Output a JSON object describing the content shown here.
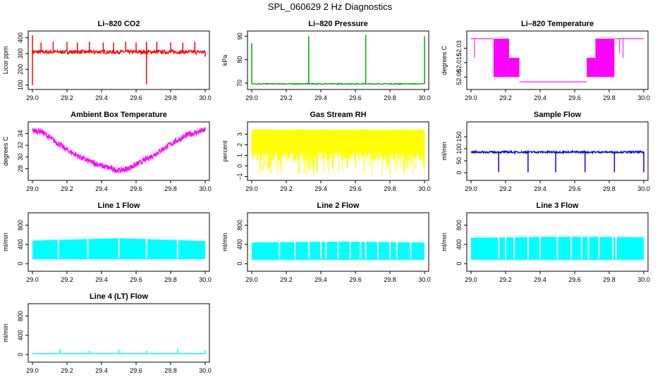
{
  "figure_title": "SPL_060629  2 Hz Diagnostics",
  "chart_data": [
    {
      "type": "line",
      "title": "Li–820 CO2",
      "ylabel": "Licor ppm",
      "color": "#ff0000",
      "xlim": [
        29.0,
        30.0
      ],
      "ylim": [
        90,
        425
      ],
      "yticks": [
        100,
        200,
        300,
        400
      ],
      "ytick_labels": [
        "100",
        "200",
        "300",
        "400"
      ],
      "xticks": [
        29.0,
        29.2,
        29.4,
        29.6,
        29.8,
        30.0
      ],
      "xtick_labels": [
        "29.0",
        "29.2",
        "29.4",
        "29.6",
        "29.8",
        "30.0"
      ],
      "pattern": "co2",
      "baseline": 310,
      "noise": 12,
      "spikes": [
        {
          "x": 29.0,
          "y": 415
        },
        {
          "x": 29.05,
          "y": 370
        },
        {
          "x": 29.12,
          "y": 375
        },
        {
          "x": 29.2,
          "y": 375
        },
        {
          "x": 29.26,
          "y": 370
        },
        {
          "x": 29.33,
          "y": 375
        },
        {
          "x": 29.41,
          "y": 370
        },
        {
          "x": 29.47,
          "y": 370
        },
        {
          "x": 29.54,
          "y": 375
        },
        {
          "x": 29.6,
          "y": 370
        },
        {
          "x": 29.66,
          "y": 375
        },
        {
          "x": 29.72,
          "y": 375
        },
        {
          "x": 29.8,
          "y": 370
        },
        {
          "x": 29.87,
          "y": 370
        },
        {
          "x": 29.94,
          "y": 375
        }
      ],
      "dips": [
        {
          "x": 29.0,
          "y": 100
        },
        {
          "x": 29.66,
          "y": 105
        },
        {
          "x": 30.0,
          "y": 280
        }
      ]
    },
    {
      "type": "line",
      "title": "Li–820 Pressure",
      "ylabel": "kPa",
      "color": "#00aa00",
      "xlim": [
        29.0,
        30.0
      ],
      "ylim": [
        68.5,
        91
      ],
      "yticks": [
        70,
        80,
        90
      ],
      "ytick_labels": [
        "70",
        "80",
        "90"
      ],
      "xticks": [
        29.0,
        29.2,
        29.4,
        29.6,
        29.8,
        30.0
      ],
      "xtick_labels": [
        "29.0",
        "29.2",
        "29.4",
        "29.6",
        "29.8",
        "30.0"
      ],
      "pattern": "pressure",
      "baseline": 69.7,
      "noise": 0.2,
      "spikes": [
        {
          "x": 29.0,
          "y": 87
        },
        {
          "x": 29.33,
          "y": 90
        },
        {
          "x": 29.66,
          "y": 90.5
        },
        {
          "x": 30.0,
          "y": 90
        }
      ]
    },
    {
      "type": "line",
      "title": "Li–820 Temperature",
      "ylabel": "degrees C",
      "color": "#ff00ff",
      "xlim": [
        29.0,
        30.0
      ],
      "ylim": [
        51.99,
        52.045
      ],
      "yticks": [
        52.0,
        52.015,
        52.03
      ],
      "ytick_labels": [
        "52.00",
        "52.015",
        "52.03"
      ],
      "xticks": [
        29.0,
        29.2,
        29.4,
        29.6,
        29.8,
        30.0
      ],
      "xtick_labels": [
        "29.0",
        "29.2",
        "29.4",
        "29.6",
        "29.8",
        "30.0"
      ],
      "pattern": "temperature",
      "levels": {
        "high": 52.04,
        "mid": 52.02,
        "low": 51.995
      },
      "blocks": [
        {
          "x0": 29.13,
          "x1": 29.22,
          "y0": 52.0,
          "y1": 52.04
        },
        {
          "x0": 29.22,
          "x1": 29.28,
          "y0": 52.0,
          "y1": 52.02
        },
        {
          "x0": 29.67,
          "x1": 29.72,
          "y0": 52.0,
          "y1": 52.02
        },
        {
          "x0": 29.72,
          "x1": 29.83,
          "y0": 52.0,
          "y1": 52.04
        }
      ],
      "spikes": [
        {
          "x": 29.02,
          "y": 52.02
        },
        {
          "x": 29.86,
          "y": 52.025
        },
        {
          "x": 29.88,
          "y": 52.02
        }
      ]
    },
    {
      "type": "line",
      "title": "Ambient Box Temperature",
      "ylabel": "degrees C",
      "color": "#ff00ff",
      "xlim": [
        29.0,
        30.0
      ],
      "ylim": [
        26.5,
        35.5
      ],
      "yticks": [
        28,
        30,
        32,
        34
      ],
      "ytick_labels": [
        "28",
        "30",
        "32",
        "34"
      ],
      "xticks": [
        29.0,
        29.2,
        29.4,
        29.6,
        29.8,
        30.0
      ],
      "xtick_labels": [
        "29.0",
        "29.2",
        "29.4",
        "29.6",
        "29.8",
        "30.0"
      ],
      "pattern": "ambient",
      "noise": 0.5,
      "curve": [
        [
          29.0,
          34.5
        ],
        [
          29.05,
          34.4
        ],
        [
          29.1,
          33.3
        ],
        [
          29.2,
          31.2
        ],
        [
          29.3,
          29.6
        ],
        [
          29.4,
          28.5
        ],
        [
          29.5,
          27.7
        ],
        [
          29.55,
          28.0
        ],
        [
          29.6,
          28.7
        ],
        [
          29.7,
          30.3
        ],
        [
          29.8,
          32.2
        ],
        [
          29.9,
          33.8
        ],
        [
          30.0,
          34.6
        ]
      ]
    },
    {
      "type": "line",
      "title": "Gas Stream RH",
      "ylabel": "percent",
      "color": "#ffff00",
      "xlim": [
        29.0,
        30.0
      ],
      "ylim": [
        -1.1,
        3.9
      ],
      "yticks": [
        -1,
        0,
        1,
        2,
        3
      ],
      "ytick_labels": [
        "–1",
        "0",
        "1",
        "2",
        "3"
      ],
      "xticks": [
        29.0,
        29.2,
        29.4,
        29.6,
        29.8,
        30.0
      ],
      "xtick_labels": [
        "29.0",
        "29.2",
        "29.4",
        "29.6",
        "29.8",
        "30.0"
      ],
      "pattern": "rh",
      "top": 3.4,
      "bottom_min": -0.9,
      "bottom_typ": 1.0
    },
    {
      "type": "line",
      "title": "Sample Flow",
      "ylabel": "ml/min",
      "color": "#0000ff",
      "xlim": [
        29.0,
        30.0
      ],
      "ylim": [
        -20,
        200
      ],
      "yticks": [
        0,
        50,
        100,
        150
      ],
      "ytick_labels": [
        "0",
        "50",
        "100",
        "150"
      ],
      "xticks": [
        29.0,
        29.2,
        29.4,
        29.6,
        29.8,
        30.0
      ],
      "xtick_labels": [
        "29.0",
        "29.2",
        "29.4",
        "29.6",
        "29.8",
        "30.0"
      ],
      "pattern": "sample",
      "baseline": 86,
      "noise": 4,
      "dips": [
        {
          "x": 29.16,
          "y": 2
        },
        {
          "x": 29.33,
          "y": 2
        },
        {
          "x": 29.49,
          "y": 2
        },
        {
          "x": 29.66,
          "y": 2
        },
        {
          "x": 29.83,
          "y": 2
        },
        {
          "x": 30.0,
          "y": 2
        }
      ]
    },
    {
      "type": "area",
      "title": "Line 1 Flow",
      "ylabel": "ml/min",
      "color": "#00ffff",
      "xlim": [
        29.0,
        30.0
      ],
      "ylim": [
        -100,
        1000
      ],
      "yticks": [
        0,
        400,
        800
      ],
      "ytick_labels": [
        "0",
        "400",
        "800"
      ],
      "xticks": [
        29.0,
        29.2,
        29.4,
        29.6,
        29.8,
        30.0
      ],
      "xtick_labels": [
        "29.0",
        "29.2",
        "29.4",
        "29.6",
        "29.8",
        "30.0"
      ],
      "pattern": "line",
      "bottom": 90,
      "top_start": 480,
      "top_mid": 530,
      "top_end": 470,
      "gaps": [
        29.15,
        29.32,
        29.5,
        29.66,
        29.84
      ]
    },
    {
      "type": "area",
      "title": "Line 2 Flow",
      "ylabel": "ml/min",
      "color": "#00ffff",
      "xlim": [
        29.0,
        30.0
      ],
      "ylim": [
        -100,
        1000
      ],
      "yticks": [
        0,
        400,
        800
      ],
      "ytick_labels": [
        "0",
        "400",
        "800"
      ],
      "xticks": [
        29.0,
        29.2,
        29.4,
        29.6,
        29.8,
        30.0
      ],
      "xtick_labels": [
        "29.0",
        "29.2",
        "29.4",
        "29.6",
        "29.8",
        "30.0"
      ],
      "pattern": "line",
      "bottom": 80,
      "top_start": 440,
      "top_mid": 460,
      "top_end": 440,
      "gaps": [
        29.16,
        29.25,
        29.33,
        29.4,
        29.43,
        29.5,
        29.57,
        29.63,
        29.66,
        29.73,
        29.8,
        29.84,
        29.92
      ]
    },
    {
      "type": "area",
      "title": "Line 3 Flow",
      "ylabel": "ml/min",
      "color": "#00ffff",
      "xlim": [
        29.0,
        30.0
      ],
      "ylim": [
        -100,
        1000
      ],
      "yticks": [
        0,
        400,
        800
      ],
      "ytick_labels": [
        "0",
        "400",
        "800"
      ],
      "xticks": [
        29.0,
        29.2,
        29.4,
        29.6,
        29.8,
        30.0
      ],
      "xtick_labels": [
        "29.0",
        "29.2",
        "29.4",
        "29.6",
        "29.8",
        "30.0"
      ],
      "pattern": "line",
      "bottom": 80,
      "top_start": 540,
      "top_mid": 560,
      "top_end": 550,
      "gaps": [
        29.16,
        29.2,
        29.25,
        29.33,
        29.4,
        29.5,
        29.58,
        29.64,
        29.68,
        29.74,
        29.82,
        29.84
      ]
    },
    {
      "type": "line",
      "title": "Line 4 (LT) Flow",
      "ylabel": "ml/min",
      "color": "#00ffff",
      "xlim": [
        29.0,
        30.0
      ],
      "ylim": [
        -100,
        1000
      ],
      "yticks": [
        0,
        400,
        800
      ],
      "ytick_labels": [
        "0",
        "400",
        "800"
      ],
      "xticks": [
        29.0,
        29.2,
        29.4,
        29.6,
        29.8,
        30.0
      ],
      "xtick_labels": [
        "29.0",
        "29.2",
        "29.4",
        "29.6",
        "29.8",
        "30.0"
      ],
      "pattern": "lt",
      "baseline": 20,
      "spikes": [
        {
          "x": 29.16,
          "y": 110
        },
        {
          "x": 29.33,
          "y": 80
        },
        {
          "x": 29.5,
          "y": 100
        },
        {
          "x": 29.66,
          "y": 80
        },
        {
          "x": 29.84,
          "y": 110
        },
        {
          "x": 30.0,
          "y": 90
        }
      ]
    }
  ]
}
